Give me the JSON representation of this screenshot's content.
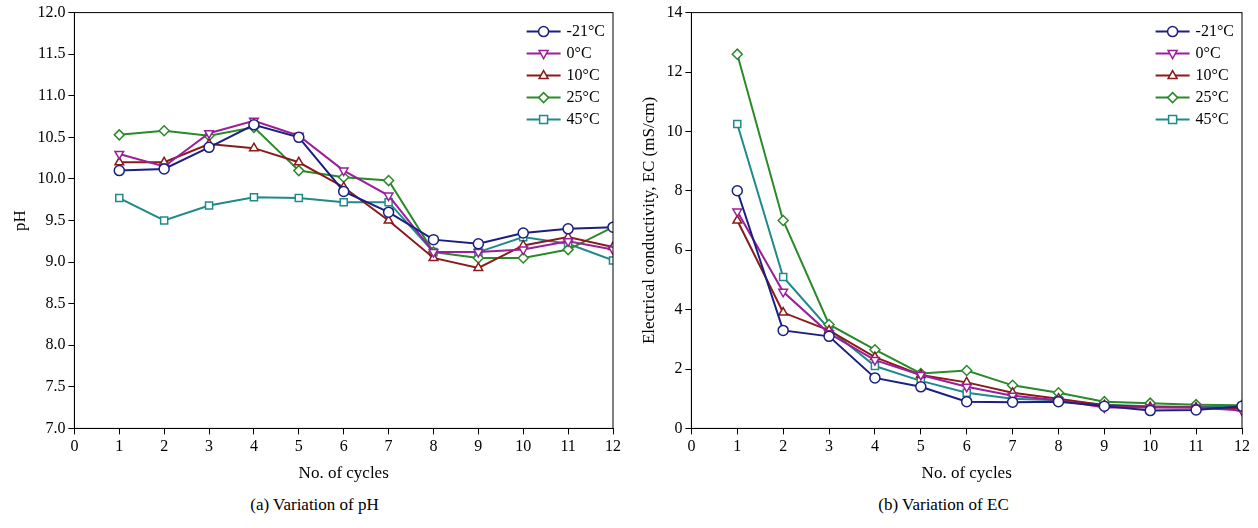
{
  "chart_data": [
    {
      "type": "line",
      "title": "(a) Variation of pH",
      "x_label": "No. of cycles",
      "y_label": "pH",
      "x": [
        1,
        2,
        3,
        4,
        5,
        6,
        7,
        8,
        9,
        10,
        11,
        12
      ],
      "xlim": [
        0,
        12
      ],
      "xticks": [
        0,
        1,
        2,
        3,
        4,
        5,
        6,
        7,
        8,
        9,
        10,
        11,
        12
      ],
      "ylim": [
        7,
        12
      ],
      "yticks": [
        {
          "value": 7,
          "label": "7.0"
        },
        7.5,
        {
          "value": 8,
          "label": "8.0"
        },
        8.5,
        {
          "value": 9,
          "label": "9.0"
        },
        9.5,
        {
          "value": 10,
          "label": "10.0"
        },
        10.5,
        {
          "value": 11,
          "label": "11.0"
        },
        11.5,
        {
          "value": 12,
          "label": "12.0"
        }
      ],
      "grid": false,
      "legend": "top-right",
      "series": [
        {
          "name": "-21°C",
          "color": "#1a1f80",
          "marker": "circle",
          "values": [
            10.1,
            10.12,
            10.38,
            10.65,
            10.5,
            9.85,
            9.6,
            9.27,
            9.22,
            9.35,
            9.4,
            9.42
          ]
        },
        {
          "name": "0°C",
          "color": "#9b1f9b",
          "marker": "triangle_down",
          "values": [
            10.3,
            10.15,
            10.55,
            10.7,
            10.52,
            10.1,
            9.8,
            9.12,
            9.12,
            9.15,
            9.25,
            9.15
          ]
        },
        {
          "name": "10°C",
          "color": "#8b1a1a",
          "marker": "triangle",
          "values": [
            10.2,
            10.2,
            10.42,
            10.37,
            10.2,
            9.9,
            9.5,
            9.05,
            8.93,
            9.2,
            9.3,
            9.18
          ]
        },
        {
          "name": "25°C",
          "color": "#2a8a2a",
          "marker": "diamond",
          "values": [
            10.53,
            10.58,
            10.52,
            10.62,
            10.1,
            10.02,
            9.98,
            9.12,
            9.05,
            9.05,
            9.15,
            9.42
          ]
        },
        {
          "name": "45°C",
          "color": "#1f8a8a",
          "marker": "square",
          "values": [
            9.77,
            9.5,
            9.68,
            9.78,
            9.77,
            9.72,
            9.72,
            9.12,
            9.12,
            9.3,
            9.22,
            9.02
          ]
        }
      ]
    },
    {
      "type": "line",
      "title": "(b) Variation of EC",
      "x_label": "No. of cycles",
      "y_label": "Electrical conductivity, EC (mS/cm)",
      "x": [
        1,
        2,
        3,
        4,
        5,
        6,
        7,
        8,
        9,
        10,
        11,
        12
      ],
      "xlim": [
        0,
        12
      ],
      "xticks": [
        0,
        1,
        2,
        3,
        4,
        5,
        6,
        7,
        8,
        9,
        10,
        11,
        12
      ],
      "ylim": [
        0,
        14
      ],
      "yticks": [
        0,
        2,
        4,
        6,
        8,
        10,
        12,
        14
      ],
      "grid": false,
      "legend": "top-right",
      "series": [
        {
          "name": "-21°C",
          "color": "#1a1f80",
          "marker": "circle",
          "values": [
            8.0,
            3.3,
            3.1,
            1.7,
            1.4,
            0.9,
            0.88,
            0.9,
            0.75,
            0.6,
            0.62,
            0.75
          ]
        },
        {
          "name": "0°C",
          "color": "#9b1f9b",
          "marker": "triangle_down",
          "values": [
            7.3,
            4.6,
            3.2,
            2.3,
            1.8,
            1.4,
            1.1,
            0.95,
            0.7,
            0.7,
            0.7,
            0.6
          ]
        },
        {
          "name": "10°C",
          "color": "#8b1a1a",
          "marker": "triangle",
          "values": [
            7.0,
            3.9,
            3.3,
            2.4,
            1.8,
            1.55,
            1.2,
            1.0,
            0.78,
            0.72,
            0.7,
            0.68
          ]
        },
        {
          "name": "25°C",
          "color": "#2a8a2a",
          "marker": "diamond",
          "values": [
            12.6,
            7.0,
            3.5,
            2.65,
            1.85,
            1.95,
            1.45,
            1.2,
            0.9,
            0.85,
            0.8,
            0.78
          ]
        },
        {
          "name": "45°C",
          "color": "#1f8a8a",
          "marker": "square",
          "values": [
            10.25,
            5.1,
            3.35,
            2.1,
            1.6,
            1.2,
            1.0,
            0.95,
            0.8,
            0.75,
            0.72,
            0.72
          ]
        }
      ]
    }
  ]
}
